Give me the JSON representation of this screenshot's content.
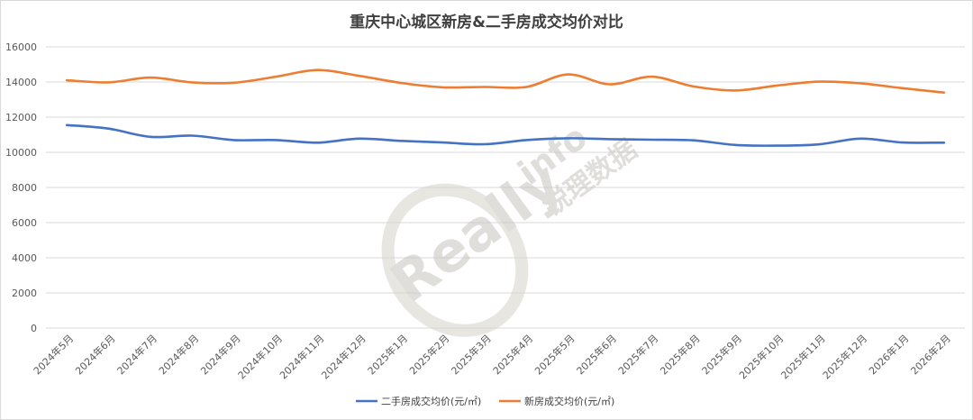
{
  "chart_data": {
    "type": "line",
    "title": "重庆中心城区新房&二手房成交均价对比",
    "xlabel": "",
    "ylabel": "",
    "ylim": [
      0,
      16000
    ],
    "yticks": [
      "0",
      "2000",
      "4000",
      "6000",
      "8000",
      "10000",
      "12000",
      "14000",
      "16000"
    ],
    "grid": true,
    "legend": "bottom",
    "categories": [
      "2024年5月",
      "2024年6月",
      "2024年7月",
      "2024年8月",
      "2024年9月",
      "2024年10月",
      "2024年11月",
      "2024年12月",
      "2025年1月",
      "2025年2月",
      "2025年3月",
      "2025年4月",
      "2025年5月",
      "2025年6月",
      "2025年7月",
      "2025年8月",
      "2025年9月",
      "2025年10月",
      "2025年11月",
      "2025年12月",
      "2026年1月",
      "2026年2月"
    ],
    "series": [
      {
        "name": "二手房成交均价(元/㎡)",
        "color": "#4472c4",
        "values": [
          11550,
          11350,
          10880,
          10950,
          10700,
          10700,
          10550,
          10780,
          10650,
          10560,
          10460,
          10700,
          10800,
          10750,
          10720,
          10680,
          10420,
          10380,
          10450,
          10780,
          10560,
          10550
        ]
      },
      {
        "name": "新房成交均价(元/㎡)",
        "color": "#ed7d31",
        "values": [
          14100,
          13980,
          14250,
          13980,
          13960,
          14300,
          14680,
          14350,
          13950,
          13700,
          13720,
          13720,
          14430,
          13870,
          14300,
          13750,
          13520,
          13800,
          14020,
          13930,
          13650,
          13400
        ]
      }
    ]
  },
  "watermark": {
    "brand": "Really",
    "brand_suffix": "info",
    "cn": "锐理数据"
  }
}
